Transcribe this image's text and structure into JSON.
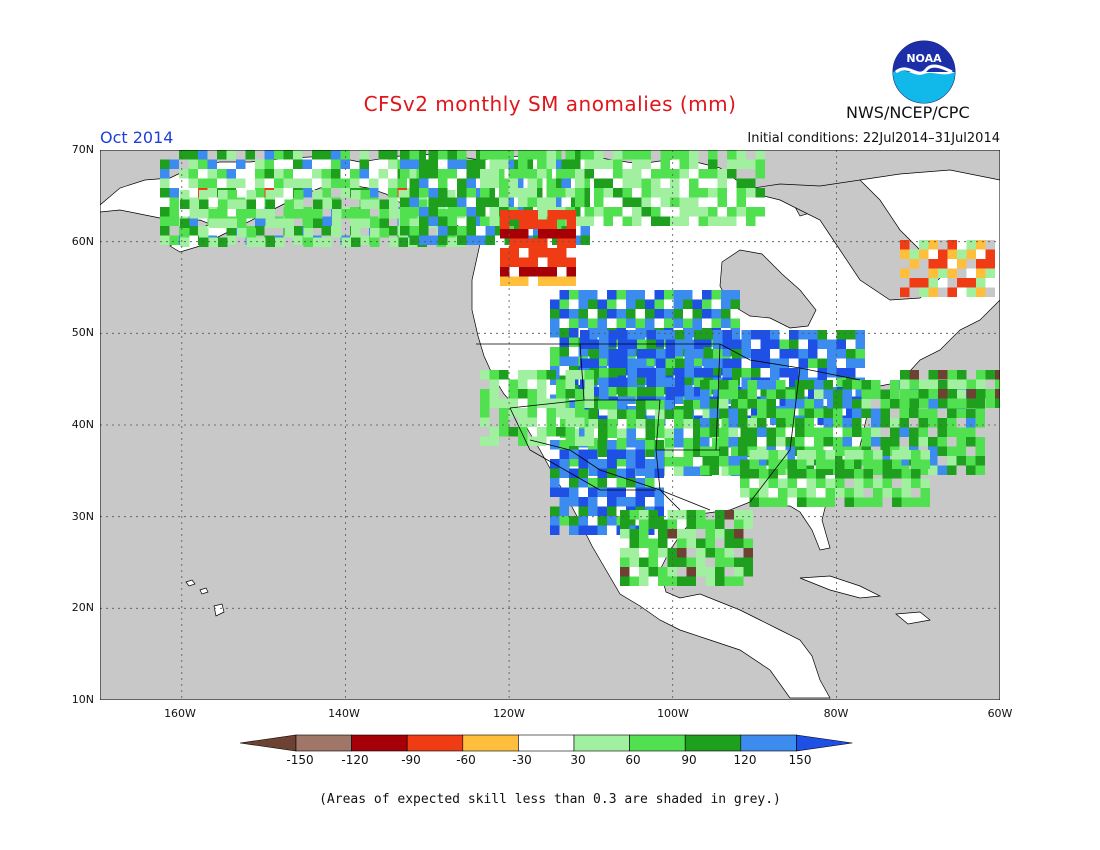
{
  "header": {
    "title": "CFSv2 monthly SM anomalies (mm)",
    "period": "Oct 2014",
    "initial_conditions": "Initial conditions: 22Jul2014–31Jul2014",
    "agency": "NWS/NCEP/CPC",
    "logo_text": "NOAA"
  },
  "map": {
    "ocean_color": "#c8c8c8",
    "land_color": "#ffffff",
    "lat_labels": [
      "70N",
      "60N",
      "50N",
      "40N",
      "30N",
      "20N",
      "10N"
    ],
    "lon_labels": [
      "160W",
      "140W",
      "120W",
      "100W",
      "80W",
      "60W"
    ],
    "lat_range": [
      10,
      70
    ],
    "lon_range": [
      -170,
      -60
    ]
  },
  "legend": {
    "levels": [
      "-150",
      "-120",
      "-90",
      "-60",
      "-30",
      "30",
      "60",
      "90",
      "120",
      "150"
    ],
    "colors": [
      "#6e4233",
      "#a07668",
      "#a50008",
      "#f03c14",
      "#ffbe3c",
      "#ffffff",
      "#a0f0a0",
      "#50e050",
      "#1ea01e",
      "#3c8cf0",
      "#1e50e6"
    ]
  },
  "footnote": "(Areas of expected skill less than 0.3 are shaded in grey.)"
}
